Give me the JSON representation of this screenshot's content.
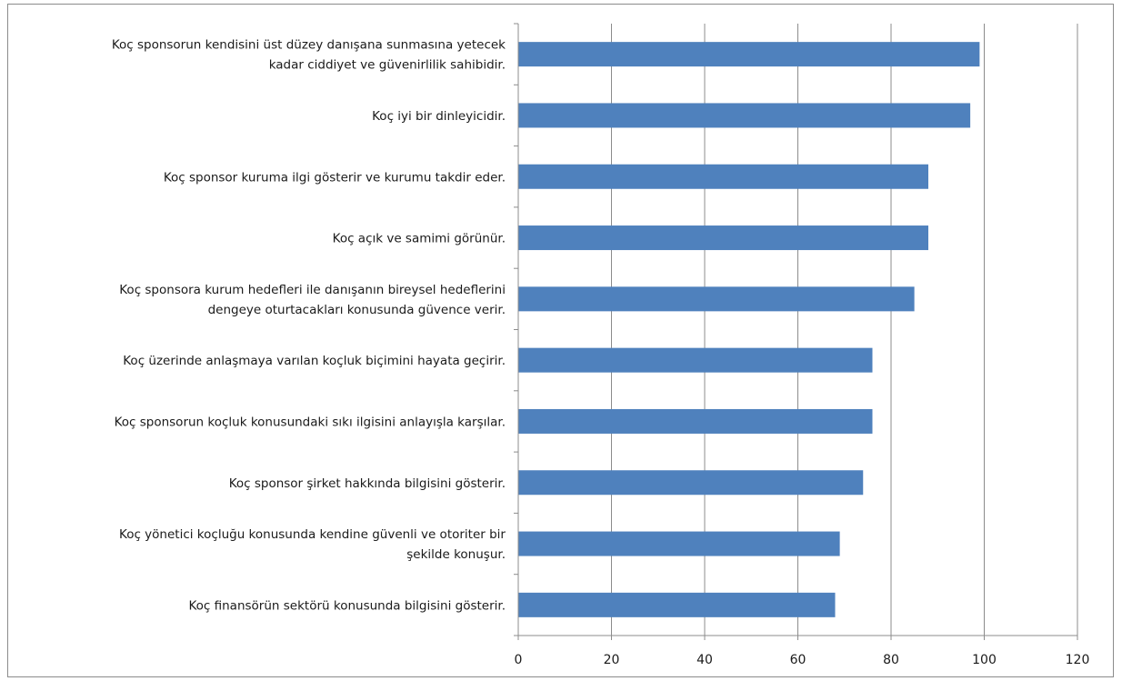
{
  "chart_data": {
    "type": "bar",
    "orientation": "horizontal",
    "categories": [
      [
        "Koç sponsorun kendisini üst düzey danışana sunmasına yetecek",
        "kadar ciddiyet ve güvenirlilik sahibidir."
      ],
      [
        "Koç iyi bir dinleyicidir."
      ],
      [
        "Koç sponsor kuruma ilgi gösterir ve kurumu takdir eder."
      ],
      [
        "Koç açık ve samimi görünür."
      ],
      [
        "Koç sponsora kurum hedefleri ile danışanın bireysel hedeflerini",
        "dengeye oturtacakları konusunda güvence verir."
      ],
      [
        "Koç üzerinde anlaşmaya varılan koçluk biçimini hayata geçirir."
      ],
      [
        "Koç sponsorun koçluk konusundaki sıkı ilgisini anlayışla karşılar."
      ],
      [
        "Koç sponsor şirket hakkında bilgisini gösterir."
      ],
      [
        "Koç yönetici koçluğu konusunda kendine güvenli ve otoriter bir",
        "şekilde konuşur."
      ],
      [
        "Koç finansörün sektörü konusunda bilgisini gösterir."
      ]
    ],
    "values": [
      99,
      97,
      88,
      88,
      85,
      76,
      76,
      74,
      69,
      68
    ],
    "xlim": [
      0,
      120
    ],
    "xticks": [
      "0",
      "20",
      "40",
      "60",
      "80",
      "100",
      "120"
    ],
    "grid": true,
    "bar_color": "#4f81bd",
    "grid_color": "#8c8c8c",
    "title": "",
    "xlabel": "",
    "ylabel": ""
  }
}
